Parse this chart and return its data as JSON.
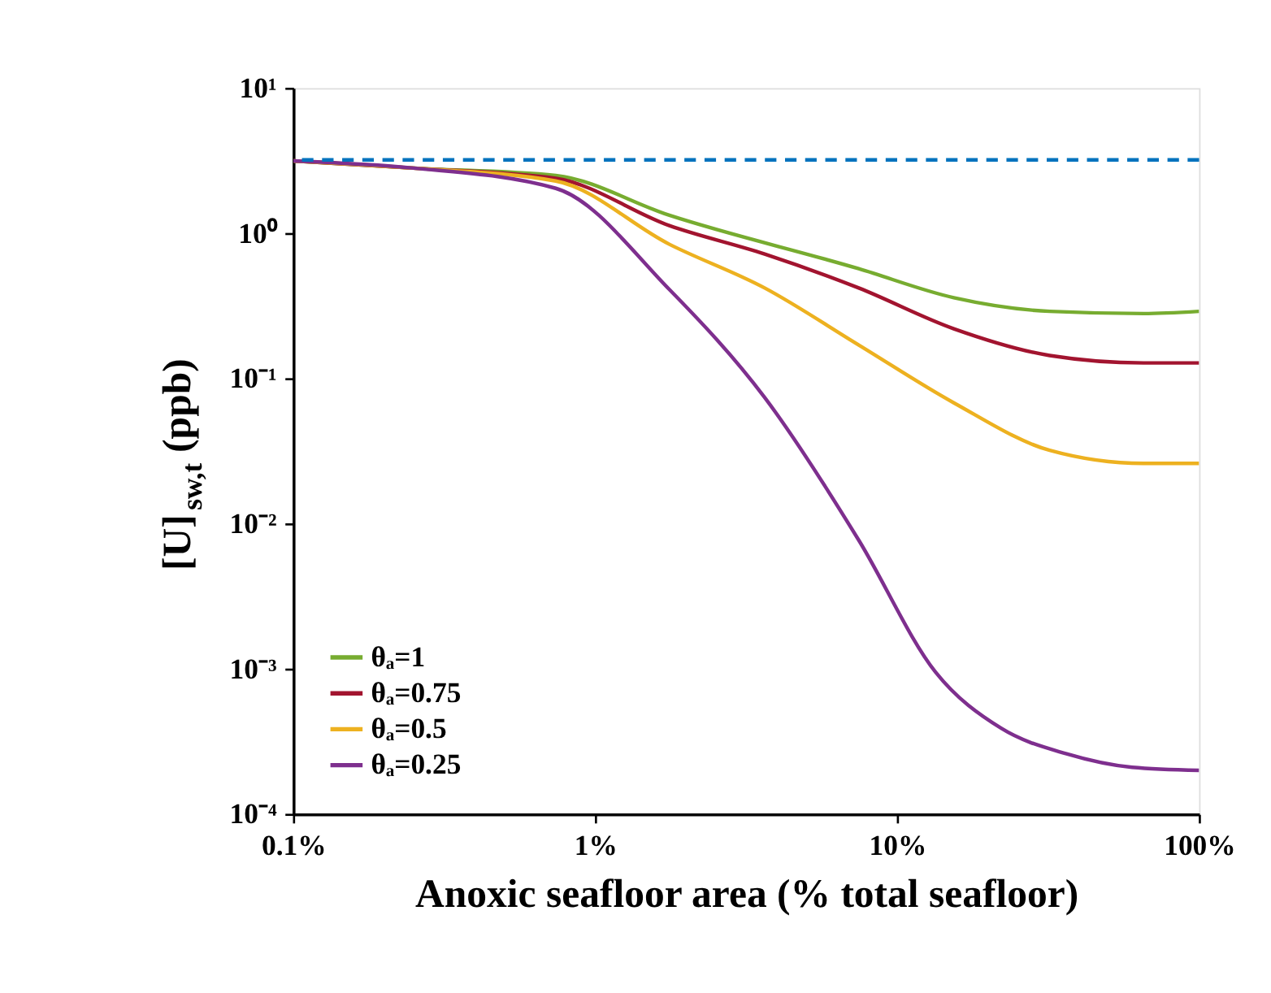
{
  "chart_data": {
    "type": "line",
    "xlabel": "Anoxic seafloor area (% total seafloor)",
    "ylabel": "[U]$_{sw,t}$ (ppb)",
    "log": "xy",
    "grid": false,
    "legend": "bottom left",
    "line_style": "solid",
    "marker": "none",
    "xlim": [
      0.1,
      100
    ],
    "xticks": [
      {
        "value": 0.1,
        "label": "0.1%"
      },
      {
        "value": 1,
        "label": "1%"
      },
      {
        "value": 10,
        "label": "10%"
      },
      {
        "value": 100,
        "label": "100%"
      }
    ],
    "ylim": [
      0.0001,
      10
    ],
    "yticks": [
      {
        "value": 0.0001,
        "label": "10⁻⁴"
      },
      {
        "value": 0.001,
        "label": "10⁻³"
      },
      {
        "value": 0.01,
        "label": "10⁻²"
      },
      {
        "value": 0.1,
        "label": "10⁻¹"
      },
      {
        "value": 1,
        "label": "10⁰"
      },
      {
        "value": 10,
        "label": "10¹"
      }
    ],
    "series": [
      {
        "name": "θₐ=1",
        "color": "#77ac30",
        "x": [
          0.1,
          0.25,
          0.74,
          1.76,
          7.46,
          15.4,
          32,
          65.5,
          100
        ],
        "values": [
          3.15,
          2.81,
          2.5,
          1.33,
          0.57,
          0.36,
          0.29,
          0.28,
          0.29
        ]
      },
      {
        "name": "θₐ=0.75",
        "color": "#a2142f",
        "x": [
          0.1,
          0.25,
          0.74,
          1.76,
          3.64,
          7.46,
          15.4,
          32,
          65.5,
          100
        ],
        "values": [
          3.15,
          2.81,
          2.39,
          1.13,
          0.72,
          0.42,
          0.22,
          0.144,
          0.128,
          0.128
        ]
      },
      {
        "name": "θₐ=0.5",
        "color": "#edb120",
        "x": [
          0.1,
          0.25,
          0.74,
          1.76,
          3.64,
          7.46,
          15.4,
          32,
          65.5,
          100
        ],
        "values": [
          3.15,
          2.81,
          2.29,
          0.84,
          0.42,
          0.17,
          0.068,
          0.032,
          0.026,
          0.026
        ]
      },
      {
        "name": "θₐ=0.25",
        "color": "#7e2f8e",
        "x": [
          0.1,
          0.25,
          0.74,
          1.76,
          3.64,
          7.46,
          13.4,
          22.1,
          36.4,
          60,
          100
        ],
        "values": [
          3.15,
          2.81,
          2.04,
          0.41,
          0.074,
          0.0077,
          0.00095,
          0.00039,
          0.00026,
          0.00021,
          0.0002
        ]
      }
    ],
    "ref_lines": [
      {
        "axis": "y",
        "value": 3.2,
        "color": "#0072bd",
        "line_style": "dashed"
      }
    ]
  }
}
